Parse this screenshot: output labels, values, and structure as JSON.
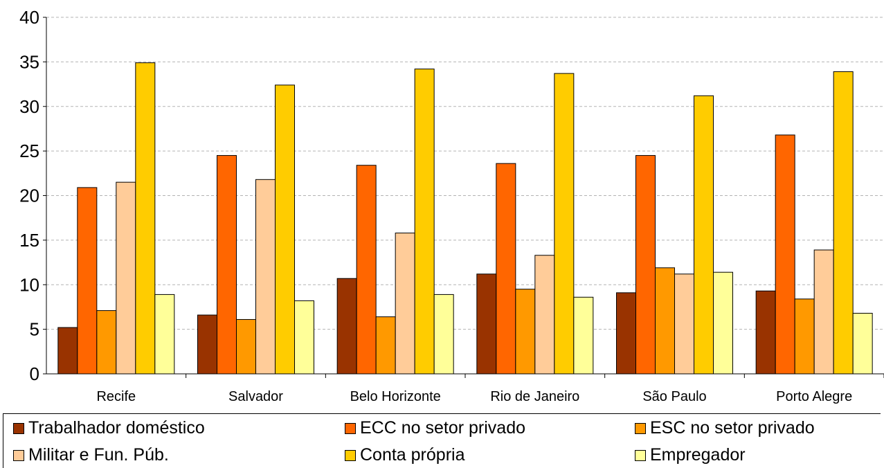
{
  "chart_data": {
    "type": "bar",
    "title": "",
    "xlabel": "",
    "ylabel": "",
    "ylim": [
      0,
      40
    ],
    "yticks": [
      0,
      5,
      10,
      15,
      20,
      25,
      30,
      35,
      40
    ],
    "grid": true,
    "legend_position": "bottom",
    "categories": [
      "Recife",
      "Salvador",
      "Belo Horizonte",
      "Rio de Janeiro",
      "São Paulo",
      "Porto Alegre"
    ],
    "series": [
      {
        "name": "Trabalhador doméstico",
        "color": "#993300",
        "values": [
          5.2,
          6.6,
          10.7,
          11.2,
          9.1,
          9.3
        ]
      },
      {
        "name": "ECC no setor privado",
        "color": "#FF6600",
        "values": [
          20.9,
          24.5,
          23.4,
          23.6,
          24.5,
          26.8
        ]
      },
      {
        "name": "ESC no setor privado",
        "color": "#FF9900",
        "values": [
          7.1,
          6.1,
          6.4,
          9.5,
          11.9,
          8.4
        ]
      },
      {
        "name": "Militar e Fun. Púb.",
        "color": "#FFCC99",
        "values": [
          21.5,
          21.8,
          15.8,
          13.3,
          11.2,
          13.9
        ]
      },
      {
        "name": "Conta própria",
        "color": "#FFCC00",
        "values": [
          34.9,
          32.4,
          34.2,
          33.7,
          31.2,
          33.9
        ]
      },
      {
        "name": "Empregador",
        "color": "#FFFF99",
        "values": [
          8.9,
          8.2,
          8.9,
          8.6,
          11.4,
          6.8
        ]
      }
    ]
  }
}
